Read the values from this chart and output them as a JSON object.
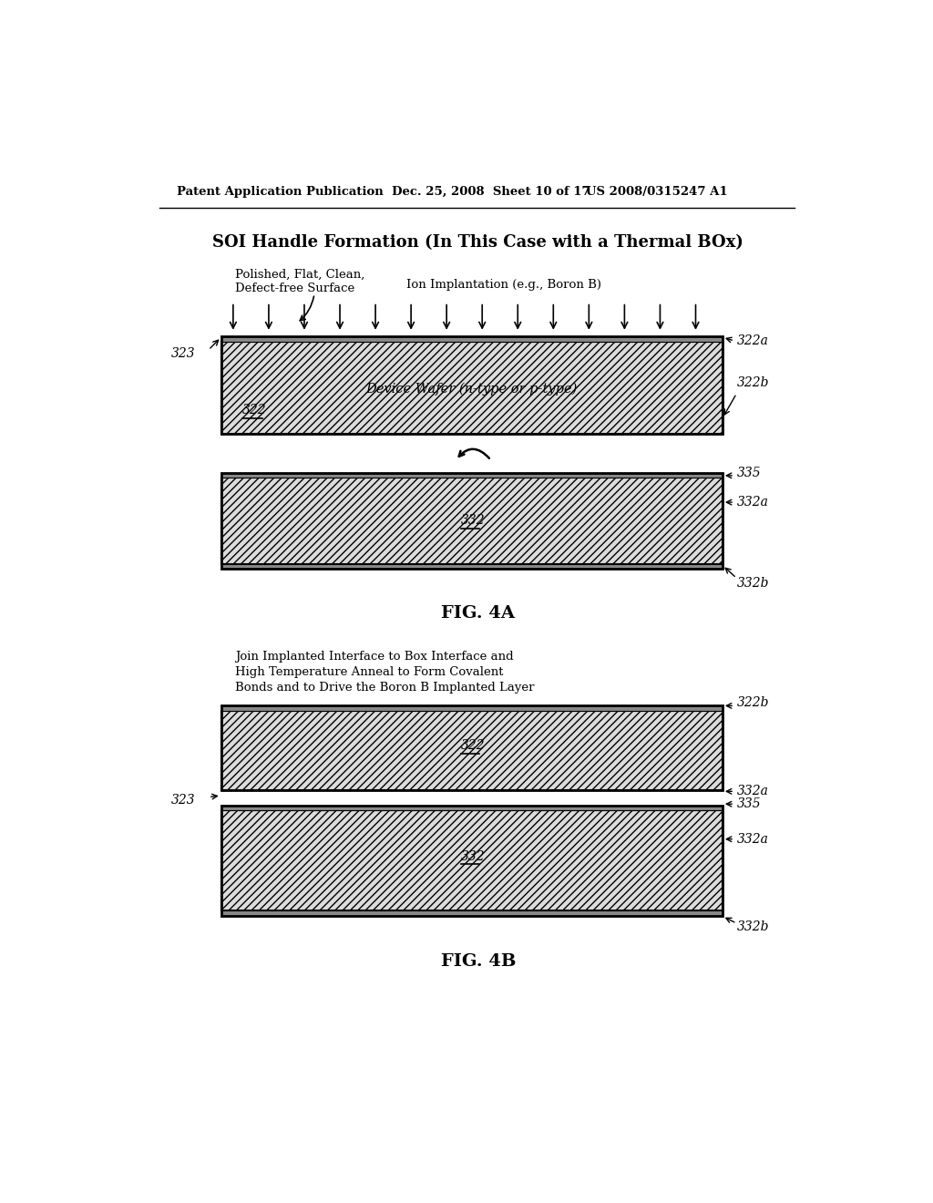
{
  "bg_color": "#ffffff",
  "header_left": "Patent Application Publication",
  "header_mid": "Dec. 25, 2008  Sheet 10 of 17",
  "header_right": "US 2008/0315247 A1",
  "fig4a_title": "SOI Handle Formation (In This Case with a Thermal BOx)",
  "fig4a_label_surf1": "Polished, Flat, Clean,",
  "fig4a_label_surf2": "Defect-free Surface",
  "fig4a_label_ion": "Ion Implantation (e.g., Boron B)",
  "fig4a_label323": "323",
  "fig4a_label322a": "322a",
  "fig4a_label322b": "322b",
  "fig4a_label322": "322",
  "fig4a_wafer_text": "Device Wafer (n-type or p-type)",
  "fig4a_label335": "335",
  "fig4a_label332a": "332a",
  "fig4a_label332": "332",
  "fig4a_label332b": "332b",
  "fig4a_caption": "FIG. 4A",
  "fig4b_title_line1": "Join Implanted Interface to Box Interface and",
  "fig4b_title_line2": "High Temperature Anneal to Form Covalent",
  "fig4b_title_line3": "Bonds and to Drive the Boron B Implanted Layer",
  "fig4b_label322b": "322b",
  "fig4b_label322": "322",
  "fig4b_label323": "323",
  "fig4b_label332a_top": "332a",
  "fig4b_label335": "335",
  "fig4b_label332a_bot": "332a",
  "fig4b_label332": "332",
  "fig4b_label332b": "332b",
  "fig4b_caption": "FIG. 4B",
  "text_color": "#000000",
  "wafer_fill": "#dcdcdc",
  "thin_fill": "#b0b0b0",
  "hatch": "////"
}
